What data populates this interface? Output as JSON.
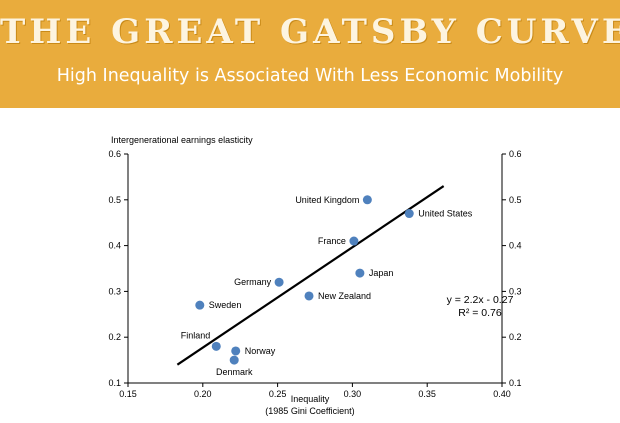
{
  "banner": {
    "title": "The Great Gatsby Curve",
    "subtitle": "High Inequality is Associated With Less Economic Mobility",
    "background_color": "#e9ac3d"
  },
  "chart_data": {
    "type": "scatter",
    "ylabel": "Intergenerational earnings elasticity",
    "xlabel_lines": [
      "Inequality",
      "(1985 Gini Coefficient)"
    ],
    "xlim": [
      0.15,
      0.4
    ],
    "ylim": [
      0.1,
      0.6
    ],
    "x_ticks": [
      0.15,
      0.2,
      0.25,
      0.3,
      0.35,
      0.4
    ],
    "x_tick_labels": [
      "0.15",
      "0.20",
      "0.25",
      "0.30",
      "0.35",
      "0.40"
    ],
    "y_ticks": [
      0.1,
      0.2,
      0.3,
      0.4,
      0.5,
      0.6
    ],
    "y_tick_labels": [
      "0.1",
      "0.2",
      "0.3",
      "0.4",
      "0.5",
      "0.6"
    ],
    "right_axis_mirrored": true,
    "grid": false,
    "marker_color": "#4f81bd",
    "points": [
      {
        "label": "United Kingdom",
        "x": 0.31,
        "y": 0.5,
        "label_side": "left"
      },
      {
        "label": "United States",
        "x": 0.338,
        "y": 0.47,
        "label_side": "right"
      },
      {
        "label": "France",
        "x": 0.301,
        "y": 0.41,
        "label_side": "left"
      },
      {
        "label": "Japan",
        "x": 0.305,
        "y": 0.34,
        "label_side": "right"
      },
      {
        "label": "Germany",
        "x": 0.251,
        "y": 0.32,
        "label_side": "left"
      },
      {
        "label": "New Zealand",
        "x": 0.271,
        "y": 0.29,
        "label_side": "right"
      },
      {
        "label": "Sweden",
        "x": 0.198,
        "y": 0.27,
        "label_side": "right"
      },
      {
        "label": "Finland",
        "x": 0.209,
        "y": 0.18,
        "label_side": "above-left"
      },
      {
        "label": "Norway",
        "x": 0.222,
        "y": 0.17,
        "label_side": "right"
      },
      {
        "label": "Denmark",
        "x": 0.221,
        "y": 0.15,
        "label_side": "below"
      }
    ],
    "trendline": {
      "x_start": 0.183,
      "y_start": 0.14,
      "x_end": 0.361,
      "y_end": 0.53
    },
    "annotations": [
      "y = 2.2x - 0.27",
      "R² = 0.76"
    ]
  }
}
